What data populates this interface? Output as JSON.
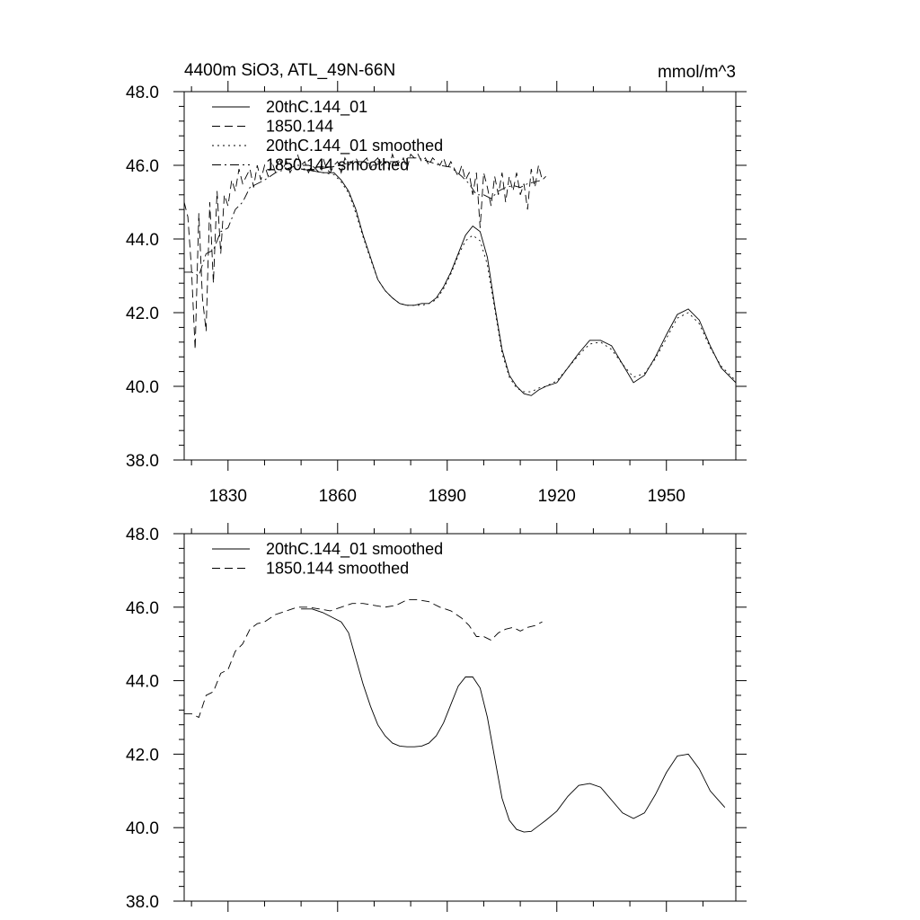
{
  "chart_data": [
    {
      "type": "line",
      "title": "4400m SiO3, ATL_49N-66N",
      "units": "mmol/m^3",
      "xlim": [
        1818,
        1969
      ],
      "ylim": [
        38.0,
        48.0
      ],
      "x_ticks": [
        1830,
        1860,
        1890,
        1920,
        1950
      ],
      "x_tick_labels": [
        "1830",
        "1860",
        "1890",
        "1920",
        "1950"
      ],
      "y_ticks": [
        38.0,
        40.0,
        42.0,
        44.0,
        46.0,
        48.0
      ],
      "y_tick_labels": [
        "38.0",
        "40.0",
        "42.0",
        "44.0",
        "46.0",
        "48.0"
      ],
      "legend_position": "top-left",
      "series": [
        {
          "name": "20thC.144_01",
          "style": "solid",
          "x": [
            1850,
            1853,
            1856,
            1859,
            1861,
            1863,
            1865,
            1867,
            1869,
            1871,
            1873,
            1875,
            1877,
            1879,
            1881,
            1883,
            1885,
            1887,
            1889,
            1891,
            1893,
            1895,
            1897,
            1899,
            1901,
            1903,
            1905,
            1907,
            1909,
            1911,
            1913,
            1915,
            1917,
            1920,
            1923,
            1926,
            1929,
            1932,
            1935,
            1938,
            1941,
            1944,
            1947,
            1950,
            1953,
            1956,
            1959,
            1962,
            1965,
            1969
          ],
          "values": [
            45.9,
            45.85,
            45.8,
            45.8,
            45.6,
            45.3,
            44.8,
            44.1,
            43.5,
            42.9,
            42.6,
            42.4,
            42.25,
            42.2,
            42.2,
            42.25,
            42.25,
            42.4,
            42.7,
            43.1,
            43.6,
            44.1,
            44.35,
            44.2,
            43.5,
            42.2,
            41.0,
            40.3,
            40.0,
            39.8,
            39.75,
            39.9,
            40.0,
            40.1,
            40.5,
            40.9,
            41.25,
            41.25,
            41.1,
            40.6,
            40.1,
            40.3,
            40.8,
            41.4,
            41.95,
            42.1,
            41.8,
            41.1,
            40.5,
            40.1
          ]
        },
        {
          "name": "1850.144",
          "style": "dashed",
          "x": [
            1818,
            1819,
            1820,
            1821,
            1822,
            1823,
            1824,
            1825,
            1826,
            1827,
            1828,
            1829,
            1830,
            1831,
            1832,
            1833,
            1834,
            1835,
            1836,
            1837,
            1838,
            1839,
            1840,
            1841,
            1842,
            1843,
            1844,
            1845,
            1846,
            1847,
            1848,
            1849,
            1850,
            1851,
            1852,
            1853,
            1854,
            1855,
            1856,
            1857,
            1858,
            1859,
            1860,
            1861,
            1862,
            1863,
            1864,
            1865,
            1866,
            1867,
            1868,
            1869,
            1870,
            1871,
            1872,
            1873,
            1874,
            1875,
            1876,
            1877,
            1878,
            1879,
            1880,
            1881,
            1882,
            1883,
            1884,
            1885,
            1886,
            1887,
            1888,
            1889,
            1890,
            1891,
            1892,
            1893,
            1894,
            1895,
            1896,
            1897,
            1898,
            1899,
            1900,
            1901,
            1902,
            1903,
            1904,
            1905,
            1906,
            1907,
            1908,
            1909,
            1910,
            1911,
            1912,
            1913,
            1914,
            1915,
            1916,
            1917
          ],
          "values": [
            45.0,
            44.6,
            43.2,
            41.0,
            44.7,
            42.4,
            41.5,
            45.0,
            42.8,
            45.3,
            43.6,
            45.2,
            44.9,
            45.6,
            45.3,
            45.9,
            45.5,
            45.7,
            45.9,
            45.4,
            46.0,
            45.6,
            46.0,
            45.7,
            46.1,
            45.8,
            46.2,
            45.9,
            46.1,
            45.8,
            46.0,
            46.3,
            46.0,
            46.1,
            45.8,
            46.0,
            45.9,
            45.8,
            46.2,
            45.9,
            45.8,
            46.0,
            46.1,
            45.8,
            46.2,
            46.0,
            46.1,
            46.2,
            46.0,
            46.1,
            46.2,
            45.9,
            46.1,
            46.2,
            46.0,
            46.1,
            45.9,
            46.3,
            46.0,
            46.1,
            46.2,
            45.9,
            46.3,
            46.2,
            46.3,
            46.1,
            46.2,
            46.0,
            46.2,
            46.1,
            46.0,
            46.2,
            45.9,
            46.1,
            45.9,
            45.7,
            46.0,
            45.6,
            45.8,
            45.2,
            45.8,
            44.3,
            45.8,
            45.4,
            44.9,
            45.7,
            45.2,
            45.8,
            45.0,
            45.7,
            45.3,
            45.8,
            45.2,
            45.5,
            44.8,
            45.9,
            45.4,
            46.0,
            45.6,
            45.7
          ]
        },
        {
          "name": "20thC.144_01 smoothed",
          "style": "dotted",
          "x": [
            1850,
            1853,
            1856,
            1859,
            1861,
            1863,
            1865,
            1867,
            1869,
            1871,
            1873,
            1875,
            1877,
            1879,
            1881,
            1883,
            1885,
            1887,
            1889,
            1891,
            1893,
            1895,
            1897,
            1899,
            1901,
            1903,
            1905,
            1907,
            1909,
            1911,
            1913,
            1915,
            1917,
            1920,
            1923,
            1926,
            1929,
            1932,
            1935,
            1938,
            1941,
            1944,
            1947,
            1950,
            1953,
            1956,
            1959,
            1962,
            1965,
            1969
          ],
          "values": [
            45.9,
            45.85,
            45.8,
            45.75,
            45.55,
            45.25,
            44.7,
            44.05,
            43.45,
            42.9,
            42.6,
            42.4,
            42.25,
            42.2,
            42.2,
            42.2,
            42.25,
            42.35,
            42.65,
            43.05,
            43.55,
            43.95,
            44.1,
            43.95,
            43.3,
            42.1,
            40.9,
            40.25,
            39.95,
            39.85,
            39.85,
            39.95,
            40.0,
            40.15,
            40.5,
            40.85,
            41.15,
            41.2,
            41.0,
            40.6,
            40.25,
            40.35,
            40.75,
            41.3,
            41.85,
            42.0,
            41.7,
            41.05,
            40.55,
            40.15
          ]
        },
        {
          "name": "1850.144 smoothed",
          "style": "dashdot",
          "x": [
            1818,
            1820,
            1822,
            1824,
            1826,
            1828,
            1830,
            1832,
            1834,
            1836,
            1838,
            1840,
            1843,
            1846,
            1849,
            1852,
            1855,
            1858,
            1861,
            1864,
            1867,
            1870,
            1873,
            1876,
            1879,
            1882,
            1885,
            1888,
            1891,
            1894,
            1896,
            1898,
            1900,
            1902,
            1904,
            1906,
            1908,
            1910,
            1912,
            1914,
            1916
          ],
          "values": [
            43.1,
            43.1,
            43.0,
            43.6,
            43.7,
            44.2,
            44.3,
            44.8,
            45.0,
            45.4,
            45.5,
            45.6,
            45.8,
            45.9,
            46.0,
            46.0,
            45.9,
            45.95,
            46.0,
            46.1,
            46.1,
            46.0,
            46.1,
            46.1,
            46.2,
            46.2,
            46.1,
            46.0,
            45.95,
            45.7,
            45.5,
            45.2,
            45.2,
            45.1,
            45.3,
            45.4,
            45.45,
            45.4,
            45.5,
            45.55,
            45.6
          ]
        }
      ]
    },
    {
      "type": "line",
      "title": "",
      "xlim": [
        1818,
        1969
      ],
      "ylim": [
        38.0,
        48.0
      ],
      "x_ticks": [
        1830,
        1860,
        1890,
        1920,
        1950
      ],
      "y_ticks": [
        38.0,
        40.0,
        42.0,
        44.0,
        46.0,
        48.0
      ],
      "y_tick_labels": [
        "38.0",
        "40.0",
        "42.0",
        "44.0",
        "46.0",
        "48.0"
      ],
      "legend_position": "top-left",
      "series": [
        {
          "name": "20thC.144_01 smoothed",
          "style": "solid",
          "x": [
            1850,
            1853,
            1856,
            1859,
            1861,
            1863,
            1865,
            1867,
            1869,
            1871,
            1873,
            1875,
            1877,
            1879,
            1881,
            1883,
            1885,
            1887,
            1889,
            1891,
            1893,
            1895,
            1897,
            1899,
            1901,
            1903,
            1905,
            1907,
            1909,
            1911,
            1913,
            1915,
            1917,
            1920,
            1923,
            1926,
            1929,
            1932,
            1935,
            1938,
            1941,
            1944,
            1947,
            1950,
            1953,
            1956,
            1959,
            1962,
            1966
          ],
          "values": [
            45.95,
            45.95,
            45.85,
            45.7,
            45.6,
            45.3,
            44.6,
            43.9,
            43.3,
            42.8,
            42.5,
            42.3,
            42.22,
            42.2,
            42.2,
            42.22,
            42.3,
            42.5,
            42.85,
            43.35,
            43.85,
            44.1,
            44.1,
            43.8,
            43.0,
            41.9,
            40.8,
            40.2,
            39.95,
            39.88,
            39.9,
            40.05,
            40.2,
            40.45,
            40.85,
            41.15,
            41.2,
            41.1,
            40.75,
            40.4,
            40.25,
            40.4,
            40.9,
            41.5,
            41.95,
            42.0,
            41.6,
            41.0,
            40.55
          ]
        },
        {
          "name": "1850.144 smoothed",
          "style": "dashed",
          "x": [
            1818,
            1820,
            1822,
            1824,
            1826,
            1828,
            1830,
            1832,
            1834,
            1836,
            1838,
            1840,
            1843,
            1846,
            1849,
            1852,
            1855,
            1858,
            1861,
            1864,
            1867,
            1870,
            1873,
            1876,
            1879,
            1882,
            1885,
            1888,
            1891,
            1894,
            1896,
            1898,
            1900,
            1902,
            1904,
            1906,
            1908,
            1910,
            1912,
            1914,
            1916
          ],
          "values": [
            43.1,
            43.1,
            43.0,
            43.6,
            43.7,
            44.2,
            44.3,
            44.8,
            45.0,
            45.4,
            45.55,
            45.6,
            45.8,
            45.9,
            46.0,
            46.0,
            45.95,
            45.9,
            46.0,
            46.1,
            46.1,
            46.05,
            46.0,
            46.05,
            46.2,
            46.2,
            46.15,
            46.0,
            45.9,
            45.7,
            45.5,
            45.2,
            45.2,
            45.1,
            45.3,
            45.4,
            45.45,
            45.35,
            45.45,
            45.5,
            45.6
          ]
        }
      ]
    }
  ]
}
